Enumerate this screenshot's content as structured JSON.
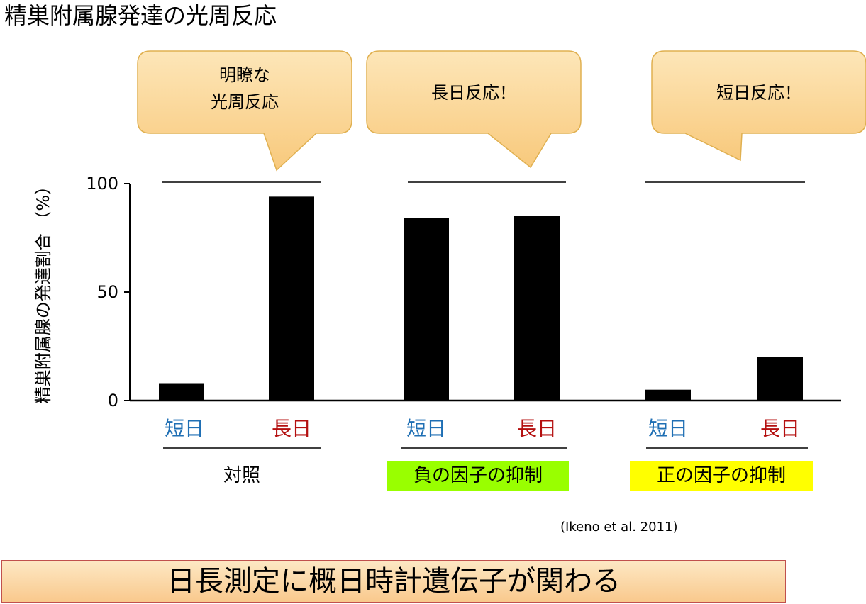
{
  "page_title": "精巣附属腺発達の光周反応",
  "bubbles": [
    {
      "text": "明瞭な\n光周反応"
    },
    {
      "text": "長日反応！"
    },
    {
      "text": "短日反応！"
    }
  ],
  "groups": [
    {
      "label": "対照",
      "highlight": "none"
    },
    {
      "label": "負の因子の抑制",
      "highlight": "#99ff00"
    },
    {
      "label": "正の因子の抑制",
      "highlight": "#ffff00"
    }
  ],
  "citation": "(Ikeno et al. 2011)",
  "banner": "日長測定に概日時計遺伝子が関わる",
  "colors": {
    "short_day": "#1f6fb4",
    "long_day": "#b40f0f",
    "bar": "#000000",
    "bubble_fill": "#fbd691",
    "bubble_stroke": "#e2b45a"
  },
  "chart_data": {
    "type": "bar",
    "ylabel": "精巣附属腺の発達割合 （%）",
    "yticks": [
      0,
      50,
      100
    ],
    "ylim": [
      0,
      100
    ],
    "categories": [
      "短日",
      "長日",
      "短日",
      "長日",
      "短日",
      "長日"
    ],
    "category_types": [
      "short",
      "long",
      "short",
      "long",
      "short",
      "long"
    ],
    "values": [
      8,
      94,
      84,
      85,
      5,
      20
    ],
    "reference_line": 100,
    "grid": false
  }
}
